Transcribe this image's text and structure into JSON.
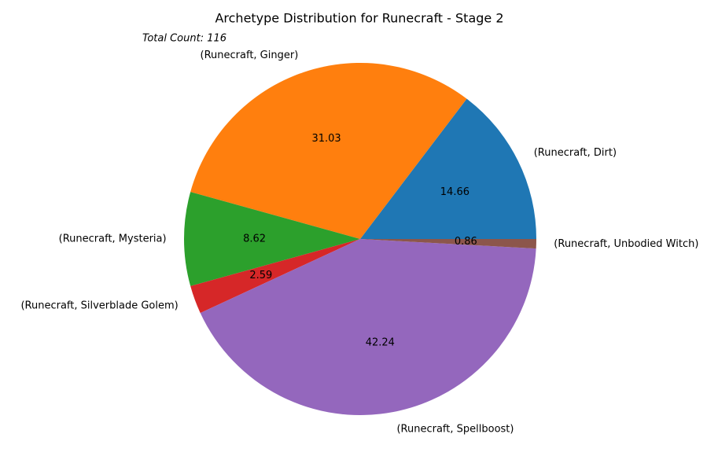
{
  "chart_data": {
    "type": "pie",
    "title": "Archetype Distribution for Runecraft - Stage 2",
    "annotation": "Total Count: 116",
    "slices": [
      {
        "label": "(Runecraft, Dirt)",
        "value": 14.66,
        "display": "14.66",
        "color": "#1f77b4"
      },
      {
        "label": "(Runecraft, Ginger)",
        "value": 31.03,
        "display": "31.03",
        "color": "#ff7f0e"
      },
      {
        "label": "(Runecraft, Mysteria)",
        "value": 8.62,
        "display": "8.62",
        "color": "#2ca02c"
      },
      {
        "label": "(Runecraft, Silverblade Golem)",
        "value": 2.59,
        "display": "2.59",
        "color": "#d62728"
      },
      {
        "label": "(Runecraft, Spellboost)",
        "value": 42.24,
        "display": "42.24",
        "color": "#9467bd"
      },
      {
        "label": "(Runecraft, Unbodied Witch)",
        "value": 0.86,
        "display": "0.86",
        "color": "#8c564b"
      }
    ],
    "start_angle_deg": 0,
    "direction": "counterclockwise"
  }
}
